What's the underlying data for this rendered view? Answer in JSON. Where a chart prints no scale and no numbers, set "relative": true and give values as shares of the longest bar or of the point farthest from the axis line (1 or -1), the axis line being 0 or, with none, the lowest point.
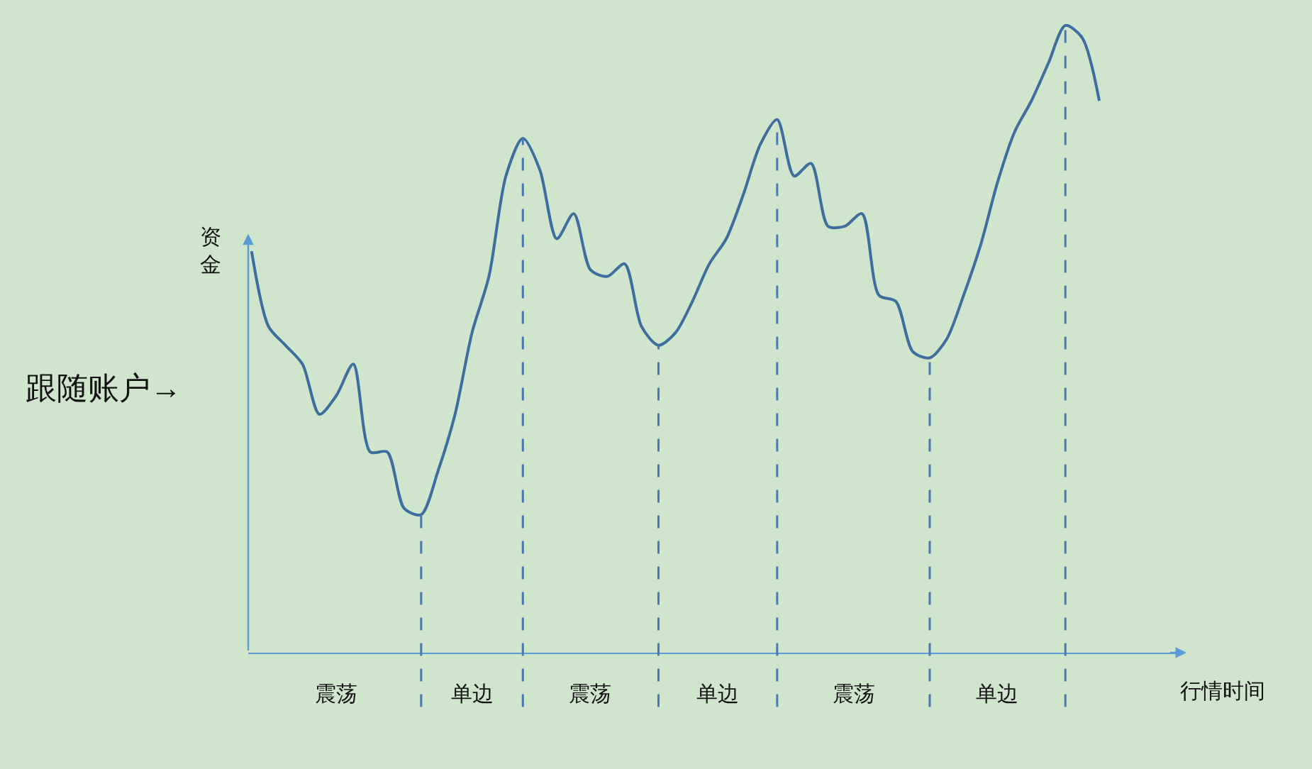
{
  "chart_data": {
    "type": "line",
    "relative": true,
    "xlabel": "行情时间",
    "ylabel": "资金",
    "categories": [
      null,
      null,
      null,
      null,
      null,
      null,
      null,
      null,
      null,
      null,
      null,
      null,
      null,
      null,
      null,
      null,
      null,
      null,
      null,
      null,
      null,
      null,
      null,
      null,
      null,
      null,
      null,
      null,
      null,
      null,
      null,
      null,
      null,
      null,
      null,
      null,
      null,
      null,
      null,
      null,
      null,
      null,
      null,
      null,
      null,
      null,
      null,
      null,
      null,
      null,
      null
    ],
    "series": [
      {
        "color": "#3f6d9e",
        "values": [
          0.64,
          0.52,
          0.49,
          0.46,
          0.38,
          0.41,
          0.46,
          0.32,
          0.32,
          0.23,
          0.22,
          0.29,
          0.38,
          0.51,
          0.6,
          0.76,
          0.82,
          0.77,
          0.66,
          0.7,
          0.61,
          0.6,
          0.62,
          0.52,
          0.49,
          0.51,
          0.56,
          0.62,
          0.66,
          0.73,
          0.81,
          0.85,
          0.76,
          0.78,
          0.68,
          0.68,
          0.7,
          0.57,
          0.56,
          0.48,
          0.47,
          0.5,
          0.57,
          0.65,
          0.75,
          0.83,
          0.88,
          0.94,
          1.0,
          0.98,
          0.88
        ]
      }
    ],
    "annotations": [
      "跟随账户→",
      "震荡",
      "单边",
      "震荡",
      "单边",
      "震荡",
      "单边"
    ],
    "marker": "none",
    "line_style": "solid",
    "grid": "x"
  }
}
